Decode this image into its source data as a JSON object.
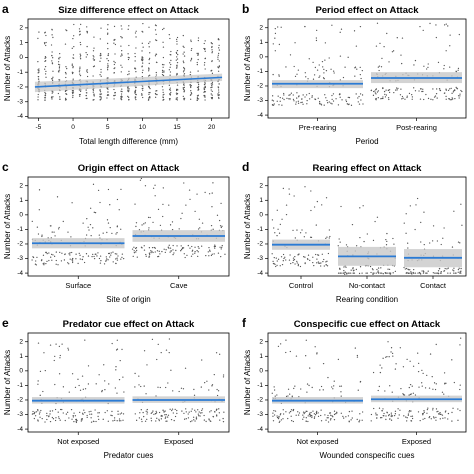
{
  "panels": [
    {
      "letter": "a",
      "title": "Size difference effect on Attack",
      "type": "scatter",
      "xlabel": "Total length difference (mm)",
      "ylabel": "Number of Attacks",
      "xlim": [
        -6.5,
        22.5
      ],
      "ylim": [
        -4.1,
        2.6
      ],
      "xticks": [
        -5,
        0,
        5,
        10,
        15,
        20
      ],
      "yticks": [
        -4,
        -3,
        -2,
        -1,
        0,
        1,
        2
      ],
      "x_values": [
        -5,
        -4,
        -3,
        -2,
        -1,
        0,
        1,
        2,
        3,
        4,
        5,
        6,
        7,
        8,
        9,
        10,
        11,
        12,
        13,
        14,
        15,
        16,
        17,
        18,
        19,
        20,
        21
      ],
      "fit": {
        "x": [
          -5.5,
          21.5
        ],
        "y": [
          -2.0,
          -1.35
        ]
      },
      "ci_lower": [
        -2.35,
        -1.6
      ],
      "ci_upper": [
        -1.65,
        -1.1
      ],
      "colors": {
        "fit": "#2b7bd4",
        "ci": "#c8c8c8",
        "points": "#555555"
      }
    },
    {
      "letter": "b",
      "title": "Period effect on Attack",
      "type": "categorical-effect",
      "xlabel": "Period",
      "ylabel": "Number of Attacks",
      "ylim": [
        -4.2,
        2.6
      ],
      "yticks": [
        -4,
        -3,
        -2,
        -1,
        0,
        1,
        2
      ],
      "categories": [
        "Pre-rearing",
        "Post-rearing"
      ],
      "estimates": [
        -1.85,
        -1.45
      ],
      "ci_lower": [
        -2.15,
        -1.8
      ],
      "ci_upper": [
        -1.6,
        -1.05
      ],
      "colors": {
        "fit": "#2b7bd4",
        "ci": "#c8c8c8",
        "points": "#555555"
      }
    },
    {
      "letter": "c",
      "title": "Origin effect on Attack",
      "type": "categorical-effect",
      "xlabel": "Site of origin",
      "ylabel": "Number of Attacks",
      "ylim": [
        -4.2,
        2.6
      ],
      "yticks": [
        -4,
        -3,
        -2,
        -1,
        0,
        1,
        2
      ],
      "categories": [
        "Surface",
        "Cave"
      ],
      "estimates": [
        -1.95,
        -1.45
      ],
      "ci_lower": [
        -2.3,
        -1.85
      ],
      "ci_upper": [
        -1.6,
        -1.05
      ],
      "colors": {
        "fit": "#2b7bd4",
        "ci": "#c8c8c8",
        "points": "#555555"
      }
    },
    {
      "letter": "d",
      "title": "Rearing effect on Attack",
      "type": "categorical-effect",
      "xlabel": "Rearing condition",
      "ylabel": "Number of Attacks",
      "ylim": [
        -4.2,
        2.6
      ],
      "yticks": [
        -4,
        -3,
        -2,
        -1,
        0,
        1,
        2
      ],
      "categories": [
        "Control",
        "No-contact",
        "Contact"
      ],
      "estimates": [
        -2.05,
        -2.85,
        -2.95
      ],
      "ci_lower": [
        -2.4,
        -3.5,
        -3.6
      ],
      "ci_upper": [
        -1.7,
        -2.2,
        -2.35
      ],
      "colors": {
        "fit": "#2b7bd4",
        "ci": "#c8c8c8",
        "points": "#555555"
      }
    },
    {
      "letter": "e",
      "title": "Predator cue effect on Attack",
      "type": "categorical-effect",
      "xlabel": "Predator cues",
      "ylabel": "Number of Attacks",
      "ylim": [
        -4.2,
        2.6
      ],
      "yticks": [
        -4,
        -3,
        -2,
        -1,
        0,
        1,
        2
      ],
      "categories": [
        "Not exposed",
        "Exposed"
      ],
      "estimates": [
        -2.05,
        -2.0
      ],
      "ci_lower": [
        -2.25,
        -2.2
      ],
      "ci_upper": [
        -1.8,
        -1.75
      ],
      "colors": {
        "fit": "#2b7bd4",
        "ci": "#c8c8c8",
        "points": "#555555"
      }
    },
    {
      "letter": "f",
      "title": "Conspecific cue effect on Attack",
      "type": "categorical-effect",
      "xlabel": "Wounded conspecific cues",
      "ylabel": "Number of Attacks",
      "ylim": [
        -4.2,
        2.6
      ],
      "yticks": [
        -4,
        -3,
        -2,
        -1,
        0,
        1,
        2
      ],
      "categories": [
        "Not exposed",
        "Exposed"
      ],
      "estimates": [
        -2.05,
        -1.95
      ],
      "ci_lower": [
        -2.25,
        -2.15
      ],
      "ci_upper": [
        -1.8,
        -1.7
      ],
      "colors": {
        "fit": "#2b7bd4",
        "ci": "#c8c8c8",
        "points": "#555555"
      }
    }
  ]
}
